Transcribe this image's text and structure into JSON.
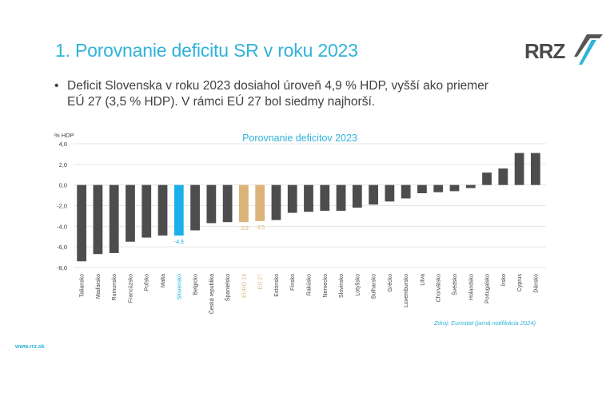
{
  "slide": {
    "title": "1. Porovnanie deficitu SR v roku 2023",
    "logo_text": "RRZ",
    "bullet_line1": "Deficit Slovenska v roku 2023 dosiahol úroveň 4,9 % HDP, vyšší ako priemer",
    "bullet_line2": "EÚ 27    (3,5 % HDP). V rámci EÚ 27 bol siedmy najhorší.",
    "footer_url": "www.rrz.sk"
  },
  "colors": {
    "title": "#2fb3d8",
    "bar_default": "#4d4d4d",
    "bar_highlight_sk": "#1ab0e8",
    "bar_aggregate": "#dcb47a",
    "source_text": "#2fb3d8"
  },
  "chart_data": {
    "type": "bar",
    "title": "Porovnanie deficitov 2023",
    "ylabel": "% HDP",
    "xlabel": "",
    "ylim": [
      -8.0,
      4.0
    ],
    "yticks": [
      4.0,
      2.0,
      0.0,
      -2.0,
      -4.0,
      -6.0,
      -8.0
    ],
    "ytick_labels": [
      "4,0",
      "2,0",
      "0,0",
      "-2,0",
      "-4,0",
      "-6,0",
      "-8,0"
    ],
    "grid": true,
    "source": "Zdroj: Eurostat (jarná notifikácia 2024)",
    "categories": [
      "Taliansko",
      "Maďarsko",
      "Rumunsko",
      "Francúzsko",
      "Poľsko",
      "Malta",
      "Slovensko",
      "Belgicko",
      "Česká republika",
      "Španielsko",
      "EURO 19",
      "EÚ 27",
      "Estónsko",
      "Fínsko",
      "Rakúsko",
      "Nemecko",
      "Slovinsko",
      "Lotyšsko",
      "Bulharsko",
      "Grécko",
      "Luxembursko",
      "Litva",
      "Chorvátsko",
      "Švédsko",
      "Holandsko",
      "Portugalsko",
      "Írsko",
      "Cyprus",
      "Dánsko"
    ],
    "values": [
      -7.4,
      -6.7,
      -6.6,
      -5.5,
      -5.1,
      -4.9,
      -4.9,
      -4.4,
      -3.7,
      -3.6,
      -3.6,
      -3.5,
      -3.4,
      -2.7,
      -2.6,
      -2.5,
      -2.5,
      -2.2,
      -1.9,
      -1.6,
      -1.3,
      -0.8,
      -0.7,
      -0.6,
      -0.3,
      1.2,
      1.6,
      3.1,
      3.1
    ],
    "highlight": {
      "Slovensko": "sk",
      "EURO 19": "agg",
      "EÚ 27": "agg"
    },
    "data_labels": {
      "Slovensko": "-4,9",
      "EURO 19": "-3,6",
      "EÚ 27": "-3,5"
    }
  }
}
